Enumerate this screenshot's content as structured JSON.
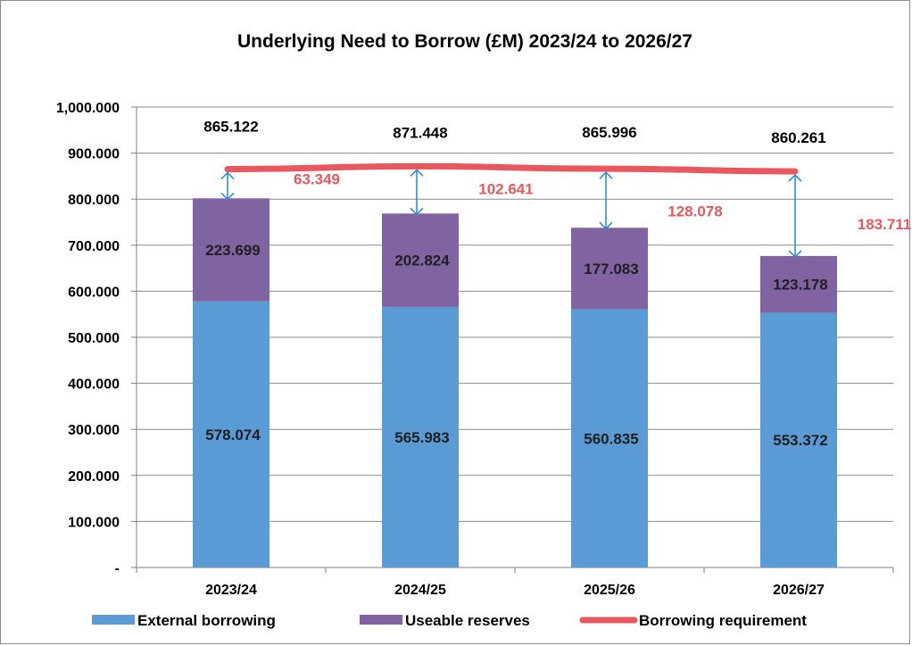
{
  "chart_data": {
    "type": "bar",
    "stacked": true,
    "title": "Underlying Need to Borrow (£M) 2023/24 to 2026/27",
    "xlabel": "",
    "ylabel": "",
    "ylim": [
      0,
      1000
    ],
    "yticks": [
      0,
      100,
      200,
      300,
      400,
      500,
      600,
      700,
      800,
      900,
      1000
    ],
    "ytick_labels": [
      "-",
      "100.000",
      "200.000",
      "300.000",
      "400.000",
      "500.000",
      "600.000",
      "700.000",
      "800.000",
      "900.000",
      "1,000.000"
    ],
    "grid": true,
    "legend_position": "bottom",
    "categories": [
      "2023/24",
      "2024/25",
      "2025/26",
      "2026/27"
    ],
    "series": [
      {
        "name": "External borrowing",
        "type": "bar",
        "color": "#5b9bd5",
        "values": [
          578.074,
          565.983,
          560.835,
          553.372
        ],
        "labels": [
          "578.074",
          "565.983",
          "560.835",
          "553.372"
        ]
      },
      {
        "name": "Useable reserves",
        "type": "bar",
        "color": "#8064a2",
        "values": [
          223.699,
          202.824,
          177.083,
          123.178
        ],
        "labels": [
          "223.699",
          "202.824",
          "177.083",
          "123.178"
        ]
      },
      {
        "name": "Borrowing requirement",
        "type": "line",
        "color": "#e8585e",
        "values": [
          865.122,
          871.448,
          865.996,
          860.261
        ],
        "labels": [
          "865.122",
          "871.448",
          "865.996",
          "860.261"
        ]
      }
    ],
    "gap_annotations": {
      "color": "#e8585e",
      "arrow_color": "#2e8fd6",
      "values": [
        63.349,
        102.641,
        128.078,
        183.711
      ],
      "labels": [
        "63.349",
        "102.641",
        "128.078",
        "183.711"
      ]
    }
  }
}
